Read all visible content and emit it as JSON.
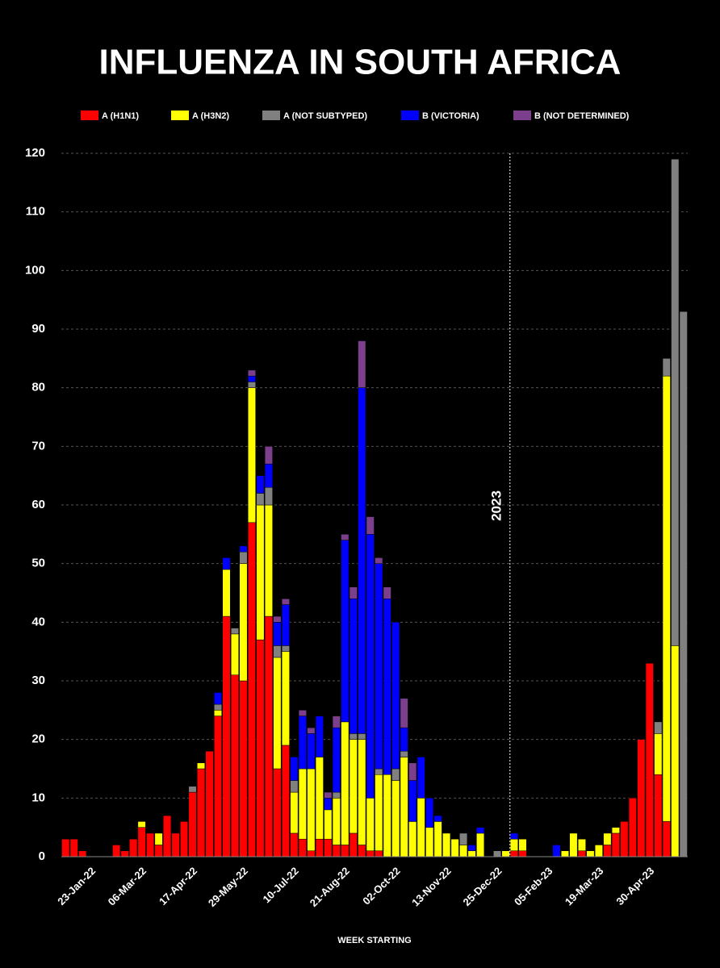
{
  "chart_data": {
    "type": "stacked-bar",
    "title": "INFLUENZA IN SOUTH AFRICA",
    "x_label": "WEEK STARTING",
    "annotation": "2023",
    "categories": [
      null,
      null,
      null,
      "23-Jan-22",
      null,
      null,
      null,
      null,
      null,
      "06-Mar-22",
      null,
      null,
      null,
      null,
      null,
      "17-Apr-22",
      null,
      null,
      null,
      null,
      null,
      "29-May-22",
      null,
      null,
      null,
      null,
      null,
      "10-Jul-22",
      null,
      null,
      null,
      null,
      null,
      "21-Aug-22",
      null,
      null,
      null,
      null,
      null,
      "02-Oct-22",
      null,
      null,
      null,
      null,
      null,
      "13-Nov-22",
      null,
      null,
      null,
      null,
      null,
      "25-Dec-22",
      null,
      null,
      null,
      null,
      null,
      "05-Feb-23",
      null,
      null,
      null,
      null,
      null,
      "19-Mar-23",
      null,
      null,
      null,
      null,
      null,
      "30-Apr-23",
      null,
      null,
      null,
      null
    ],
    "series": [
      {
        "name": "A (H1N1)",
        "color": "#ff0000",
        "values": [
          3,
          3,
          1,
          0,
          0,
          0,
          2,
          1,
          3,
          5,
          4,
          2,
          7,
          4,
          6,
          11,
          15,
          18,
          24,
          41,
          31,
          30,
          57,
          37,
          41,
          15,
          19,
          4,
          3,
          1,
          3,
          3,
          2,
          2,
          4,
          2,
          1,
          1,
          0,
          0,
          0,
          0,
          0,
          0,
          0,
          0,
          0,
          0,
          0,
          0,
          0,
          0,
          0,
          1,
          1,
          0,
          0,
          0,
          0,
          0,
          0,
          1,
          0,
          0,
          2,
          4,
          6,
          10,
          20,
          33,
          14,
          6,
          0,
          0
        ]
      },
      {
        "name": "A (H3N2)",
        "color": "#ffff00",
        "values": [
          0,
          0,
          0,
          0,
          0,
          0,
          0,
          0,
          0,
          1,
          0,
          2,
          0,
          0,
          0,
          0,
          1,
          0,
          1,
          8,
          7,
          20,
          23,
          23,
          19,
          19,
          16,
          7,
          12,
          14,
          14,
          5,
          8,
          21,
          16,
          18,
          9,
          13,
          14,
          13,
          17,
          6,
          10,
          5,
          6,
          4,
          3,
          2,
          1,
          4,
          0,
          0,
          1,
          2,
          2,
          0,
          0,
          0,
          0,
          1,
          4,
          2,
          1,
          2,
          2,
          1,
          0,
          0,
          0,
          0,
          7,
          76,
          36,
          0
        ]
      },
      {
        "name": "A (NOT SUBTYPED)",
        "color": "#808080",
        "values": [
          0,
          0,
          0,
          0,
          0,
          0,
          0,
          0,
          0,
          0,
          0,
          0,
          0,
          0,
          0,
          1,
          0,
          0,
          1,
          0,
          1,
          2,
          1,
          2,
          3,
          2,
          1,
          2,
          0,
          0,
          0,
          0,
          1,
          0,
          1,
          1,
          0,
          1,
          0,
          2,
          1,
          0,
          0,
          0,
          0,
          0,
          0,
          2,
          0,
          0,
          0,
          1,
          0,
          0,
          0,
          0,
          0,
          0,
          0,
          0,
          0,
          0,
          0,
          0,
          0,
          0,
          0,
          0,
          0,
          0,
          2,
          3,
          83,
          93
        ]
      },
      {
        "name": "B (VICTORIA)",
        "color": "#0000ff",
        "values": [
          0,
          0,
          0,
          0,
          0,
          0,
          0,
          0,
          0,
          0,
          0,
          0,
          0,
          0,
          0,
          0,
          0,
          0,
          2,
          2,
          0,
          1,
          1,
          3,
          4,
          4,
          7,
          4,
          9,
          6,
          7,
          2,
          11,
          31,
          23,
          59,
          45,
          35,
          30,
          25,
          4,
          7,
          7,
          5,
          1,
          0,
          0,
          0,
          1,
          1,
          0,
          0,
          0,
          1,
          0,
          0,
          0,
          0,
          2,
          0,
          0,
          0,
          0,
          0,
          0,
          0,
          0,
          0,
          0,
          0,
          0,
          0,
          0,
          0
        ]
      },
      {
        "name": "B (NOT DETERMINED)",
        "color": "#7b3f8c",
        "values": [
          0,
          0,
          0,
          0,
          0,
          0,
          0,
          0,
          0,
          0,
          0,
          0,
          0,
          0,
          0,
          0,
          0,
          0,
          0,
          0,
          0,
          0,
          1,
          0,
          3,
          1,
          1,
          0,
          1,
          1,
          0,
          1,
          2,
          1,
          2,
          8,
          3,
          1,
          2,
          0,
          5,
          3,
          0,
          0,
          0,
          0,
          0,
          0,
          0,
          0,
          0,
          0,
          0,
          0,
          0,
          0,
          0,
          0,
          0,
          0,
          0,
          0,
          0,
          0,
          0,
          0,
          0,
          0,
          0,
          0,
          0,
          0,
          0,
          0
        ]
      }
    ],
    "ylim": [
      0,
      120
    ],
    "yticks": [
      0,
      10,
      20,
      30,
      40,
      50,
      60,
      70,
      80,
      90,
      100,
      110,
      120
    ],
    "grid": true
  }
}
